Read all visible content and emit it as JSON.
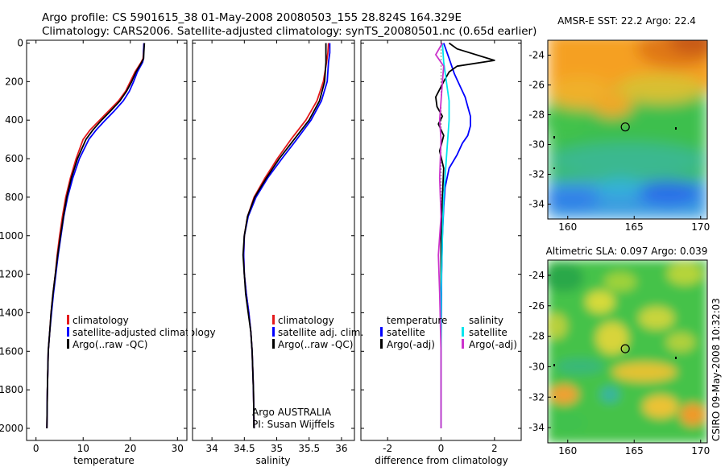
{
  "header": {
    "line1": "Argo profile: CS 5901615_38 01-May-2008 20080503_155 28.824S 164.329E",
    "line2": "Climatology: CARS2006. Satellite-adjusted climatology: synTS_20080501.nc (0.65d earlier)"
  },
  "credit": "CSIRO 09-May-2008 10:32:03",
  "chart_data": [
    {
      "type": "line",
      "id": "temperature",
      "xlabel": "temperature",
      "xlim": [
        -2,
        32
      ],
      "xticks": [
        0,
        10,
        20,
        30
      ],
      "ylim": [
        2050,
        0
      ],
      "yticks": [
        0,
        200,
        400,
        600,
        800,
        1000,
        1200,
        1400,
        1600,
        1800,
        2000
      ],
      "legend": [
        "climatology",
        "satellite-adjusted climatology",
        "Argo(..raw -QC)"
      ],
      "legend_position": "lower-right",
      "series": [
        {
          "name": "climatology",
          "color": "#e41a1c",
          "x": [
            22.9,
            22.8,
            22.7,
            22.3,
            21,
            20,
            19,
            17.5,
            15.5,
            13.5,
            11.5,
            10,
            8.5,
            7.3,
            6.3,
            5.6,
            5,
            4.5,
            4.1,
            3.6,
            3.2,
            2.9,
            2.6,
            2.4,
            2.3
          ],
          "y": [
            0,
            40,
            80,
            100,
            150,
            200,
            250,
            300,
            350,
            400,
            450,
            500,
            600,
            700,
            800,
            900,
            1000,
            1100,
            1200,
            1300,
            1400,
            1500,
            1600,
            1800,
            2000
          ]
        },
        {
          "name": "satellite-adjusted climatology",
          "color": "#0000ff",
          "x": [
            22.9,
            22.8,
            22.8,
            22.6,
            21.5,
            20.7,
            19.8,
            18.5,
            16.7,
            14.7,
            12.8,
            11.2,
            9.2,
            7.8,
            6.7,
            5.9,
            5.3,
            4.7,
            4.2,
            3.7,
            3.3,
            2.9,
            2.6,
            2.4,
            2.3
          ],
          "y": [
            0,
            40,
            80,
            100,
            150,
            200,
            250,
            300,
            350,
            400,
            450,
            500,
            600,
            700,
            800,
            900,
            1000,
            1100,
            1200,
            1300,
            1400,
            1500,
            1600,
            1800,
            2000
          ]
        },
        {
          "name": "Argo(..raw -QC)",
          "color": "#000000",
          "x": [
            23,
            22.9,
            22.8,
            22.4,
            21.2,
            20.3,
            19.2,
            17.8,
            15.9,
            13.9,
            12.1,
            10.6,
            8.8,
            7.5,
            6.5,
            5.8,
            5.2,
            4.6,
            4.1,
            3.6,
            3.2,
            2.9,
            2.6,
            2.4,
            2.3
          ],
          "y": [
            0,
            40,
            80,
            100,
            150,
            200,
            250,
            300,
            350,
            400,
            450,
            500,
            600,
            700,
            800,
            900,
            1000,
            1100,
            1200,
            1300,
            1400,
            1500,
            1600,
            1800,
            2000
          ]
        }
      ]
    },
    {
      "type": "line",
      "id": "salinity",
      "xlabel": "salinity",
      "xlim": [
        33.7,
        36.2
      ],
      "xticks": [
        34,
        34.5,
        35,
        35.5,
        36
      ],
      "ylim": [
        2050,
        0
      ],
      "legend": [
        "climatology",
        "satellite adj. clim.",
        "Argo(..raw -QC)"
      ],
      "legend_position": "lower-right",
      "annotation": [
        "Argo AUSTRALIA",
        "PI: Susan Wijffels"
      ],
      "series": [
        {
          "name": "climatology",
          "color": "#e41a1c",
          "x": [
            35.8,
            35.79,
            35.77,
            35.72,
            35.62,
            35.45,
            35.22,
            35.01,
            34.82,
            34.65,
            34.55,
            34.5,
            34.49,
            34.5,
            34.53,
            34.57,
            34.6,
            34.62,
            34.64,
            34.65
          ],
          "y": [
            0,
            50,
            100,
            200,
            300,
            400,
            500,
            600,
            700,
            800,
            900,
            1000,
            1100,
            1200,
            1300,
            1400,
            1500,
            1600,
            1800,
            2000
          ]
        },
        {
          "name": "satellite adj. clim.",
          "color": "#0000ff",
          "x": [
            35.82,
            35.82,
            35.8,
            35.78,
            35.69,
            35.53,
            35.31,
            35.08,
            34.86,
            34.68,
            34.56,
            34.5,
            34.49,
            34.5,
            34.53,
            34.57,
            34.6,
            34.62,
            34.64,
            34.65
          ],
          "y": [
            0,
            50,
            100,
            200,
            300,
            400,
            500,
            600,
            700,
            800,
            900,
            1000,
            1100,
            1200,
            1300,
            1400,
            1500,
            1600,
            1800,
            2000
          ]
        },
        {
          "name": "Argo(..raw -QC)",
          "color": "#000000",
          "x": [
            35.76,
            35.76,
            35.76,
            35.74,
            35.66,
            35.5,
            35.27,
            35.04,
            34.84,
            34.66,
            34.55,
            34.5,
            34.48,
            34.5,
            34.52,
            34.56,
            34.6,
            34.62,
            34.64,
            34.65
          ],
          "y": [
            0,
            50,
            100,
            200,
            300,
            400,
            500,
            600,
            700,
            800,
            900,
            1000,
            1100,
            1200,
            1300,
            1400,
            1500,
            1600,
            1800,
            2000
          ]
        }
      ]
    },
    {
      "type": "line",
      "id": "difference",
      "xlabel": "difference from climatology",
      "xlim": [
        -3,
        3
      ],
      "xticks": [
        -2,
        0,
        2
      ],
      "ylim": [
        2050,
        0
      ],
      "legend_groups": [
        {
          "title": "temperature",
          "items": [
            "satellite",
            "Argo(-adj)"
          ]
        },
        {
          "title": "salinity",
          "items": [
            "satellite",
            "Argo(-adj)"
          ]
        }
      ],
      "legend_position": "lower",
      "series": [
        {
          "name": "temperature satellite",
          "color": "#0000ff",
          "x": [
            0.1,
            0.3,
            0.5,
            0.7,
            0.9,
            1.0,
            1.1,
            1.1,
            1.0,
            0.8,
            0.6,
            0.3,
            0.15,
            0.1,
            0.05,
            0.02,
            0.0,
            0.0
          ],
          "y": [
            0,
            80,
            160,
            220,
            280,
            330,
            380,
            430,
            480,
            520,
            580,
            650,
            750,
            850,
            1000,
            1200,
            1600,
            2000
          ]
        },
        {
          "name": "temperature Argo(-adj)",
          "color": "#000000",
          "x": [
            0.3,
            0.6,
            2.0,
            0.6,
            0.3,
            0.1,
            -0.2,
            -0.15,
            0.05,
            -0.1,
            0.1,
            -0.05,
            0.1,
            0.05,
            0.0,
            0.0,
            0.0,
            0.0
          ],
          "y": [
            0,
            30,
            90,
            120,
            150,
            200,
            280,
            330,
            380,
            420,
            480,
            560,
            650,
            800,
            1000,
            1300,
            1700,
            2000
          ]
        },
        {
          "name": "salinity satellite",
          "color": "#00e5ee",
          "x": [
            0.05,
            0.1,
            0.2,
            0.3,
            0.3,
            0.25,
            0.2,
            0.1,
            0.05,
            0.0,
            0.0,
            0.0
          ],
          "y": [
            0,
            100,
            200,
            300,
            400,
            500,
            600,
            800,
            1000,
            1300,
            1600,
            2000
          ]
        },
        {
          "name": "salinity Argo(-adj)",
          "color": "#cc33cc",
          "x": [
            0.05,
            -0.2,
            0.1,
            0.05,
            0.0,
            -0.05,
            0.0,
            -0.05,
            0.0,
            -0.1,
            -0.05,
            0.0,
            0.0
          ],
          "y": [
            0,
            60,
            120,
            200,
            300,
            400,
            500,
            700,
            900,
            1100,
            1300,
            1600,
            2000
          ]
        }
      ]
    },
    {
      "type": "heatmap",
      "id": "sst-map",
      "title": "AMSR-E SST: 22.2 Argo: 22.4",
      "xlim": [
        158.5,
        170.5
      ],
      "ylim": [
        -35,
        -23
      ],
      "xticks": [
        160,
        165,
        170
      ],
      "yticks": [
        -24,
        -26,
        -28,
        -30,
        -32,
        -34
      ],
      "argo_position": {
        "lon": 164.33,
        "lat": -28.82
      }
    },
    {
      "type": "heatmap",
      "id": "sla-map",
      "title": "Altimetric SLA: 0.097 Argo: 0.039",
      "xlim": [
        158.5,
        170.5
      ],
      "ylim": [
        -35,
        -23
      ],
      "xticks": [
        160,
        165,
        170
      ],
      "yticks": [
        -24,
        -26,
        -28,
        -30,
        -32,
        -34
      ],
      "argo_position": {
        "lon": 164.33,
        "lat": -28.82
      }
    }
  ]
}
